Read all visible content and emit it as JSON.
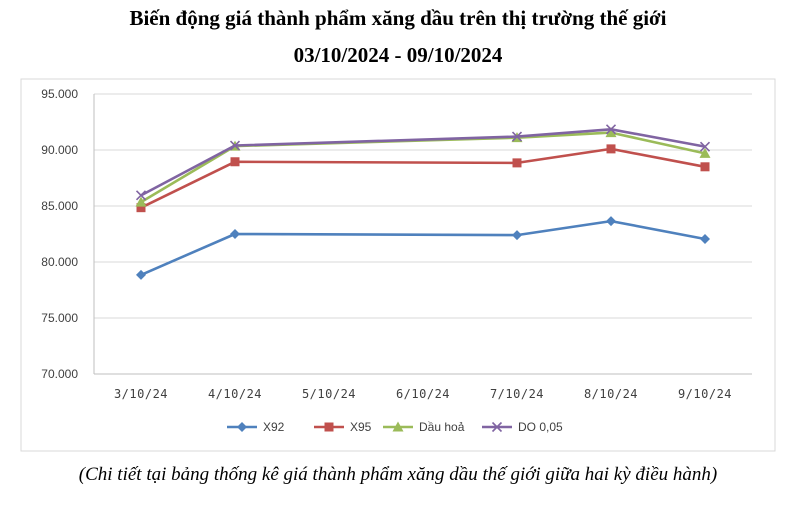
{
  "title_line1": "Biến động giá thành phẩm xăng dầu trên thị trường thế giới",
  "title_line2": "03/10/2024 - 09/10/2024",
  "caption": "(Chi tiết tại bảng thống kê giá thành phẩm xăng dầu thế giới giữa hai kỳ điều hành)",
  "chart_data": {
    "type": "line",
    "categories": [
      "3/10/24",
      "4/10/24",
      "5/10/24",
      "6/10/24",
      "7/10/24",
      "8/10/24",
      "9/10/24"
    ],
    "series": [
      {
        "name": "X92",
        "color": "#4f81bd",
        "marker": "diamond",
        "values": [
          78.85,
          82.5,
          null,
          null,
          82.4,
          83.65,
          82.05
        ]
      },
      {
        "name": "X95",
        "color": "#c0504d",
        "marker": "square",
        "values": [
          84.85,
          88.95,
          null,
          null,
          88.85,
          90.1,
          88.5
        ]
      },
      {
        "name": "Dầu hoả",
        "color": "#9bbb59",
        "marker": "triangle",
        "values": [
          85.35,
          90.35,
          null,
          null,
          91.1,
          91.55,
          89.7
        ]
      },
      {
        "name": "DO 0,05",
        "color": "#8064a2",
        "marker": "x",
        "values": [
          85.95,
          90.4,
          null,
          null,
          91.2,
          91.85,
          90.3
        ]
      }
    ],
    "y_ticks": [
      "70.000",
      "75.000",
      "80.000",
      "85.000",
      "90.000",
      "95.000"
    ],
    "ylim": [
      70,
      95
    ],
    "grid": "horizontal",
    "legend": "bottom"
  }
}
